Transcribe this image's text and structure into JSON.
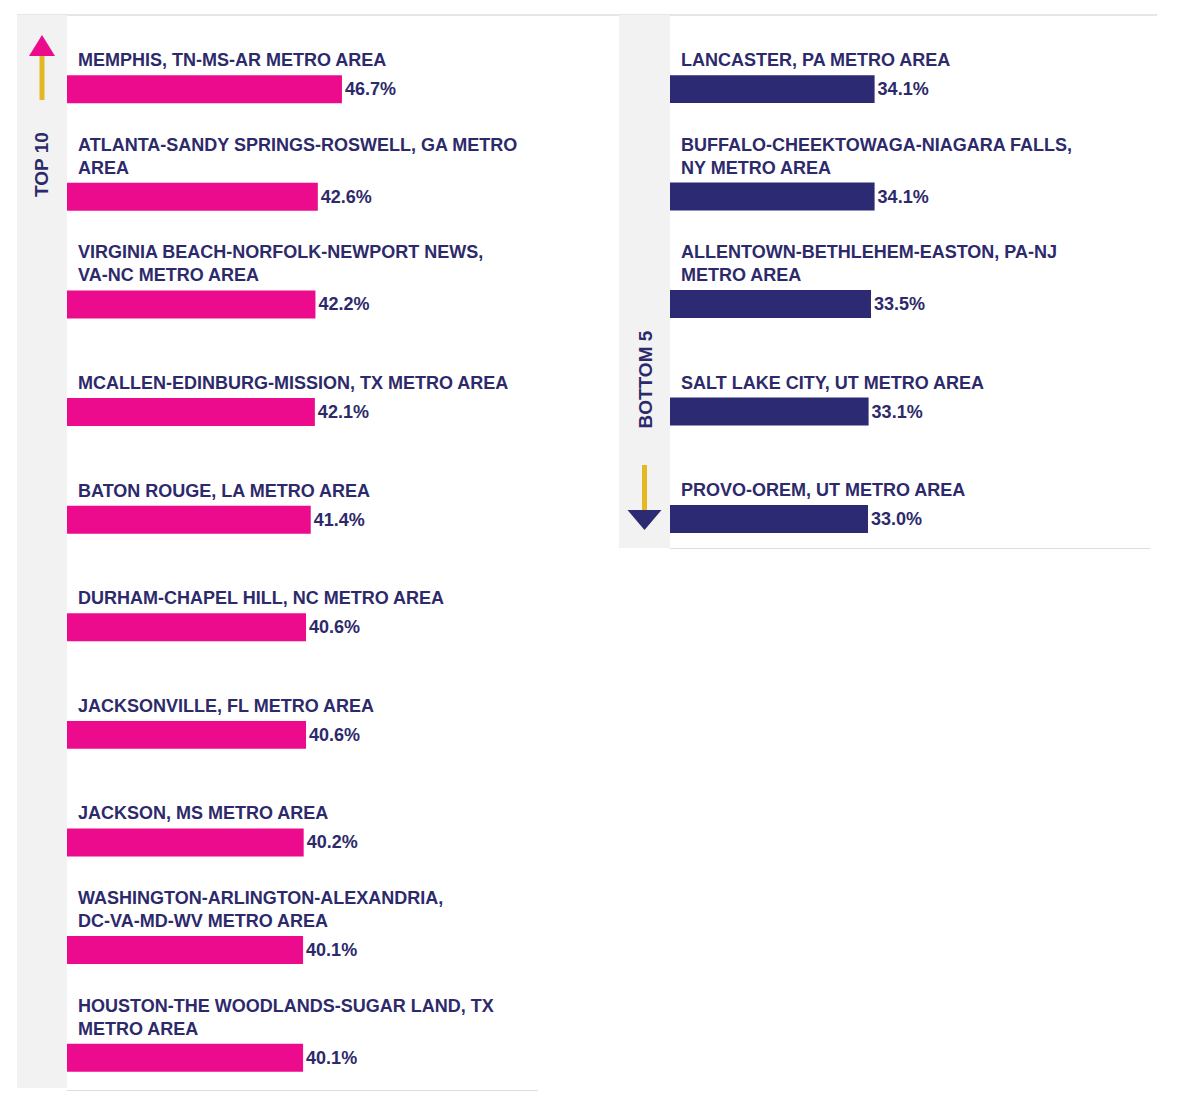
{
  "chart_data": [
    {
      "type": "bar",
      "title": "TOP 10",
      "orientation": "horizontal",
      "categories": [
        "MEMPHIS, TN-MS-AR METRO AREA",
        "ATLANTA-SANDY SPRINGS-ROSWELL, GA METRO AREA",
        "VIRGINIA BEACH-NORFOLK-NEWPORT NEWS, VA-NC METRO AREA",
        "MCALLEN-EDINBURG-MISSION, TX METRO AREA",
        "BATON ROUGE, LA METRO AREA",
        "DURHAM-CHAPEL HILL, NC METRO AREA",
        "JACKSONVILLE, FL METRO AREA",
        "JACKSON, MS METRO AREA",
        "WASHINGTON-ARLINGTON-ALEXANDRIA, DC-VA-MD-WV METRO AREA",
        "HOUSTON-THE WOODLANDS-SUGAR LAND, TX METRO AREA"
      ],
      "values": [
        46.7,
        42.6,
        42.2,
        42.1,
        41.4,
        40.6,
        40.6,
        40.2,
        40.1,
        40.1
      ],
      "value_labels": [
        "46.7%",
        "42.6%",
        "42.2%",
        "42.1%",
        "41.4%",
        "40.6%",
        "40.6%",
        "40.2%",
        "40.1%",
        "40.1%"
      ],
      "color": "#ec0b8c",
      "data_labels": true,
      "tick_labels": false,
      "xlim": [
        0,
        80
      ]
    },
    {
      "type": "bar",
      "title": "BOTTOM 5",
      "orientation": "horizontal",
      "categories": [
        "LANCASTER, PA METRO AREA",
        "BUFFALO-CHEEKTOWAGA-NIAGARA FALLS, NY METRO AREA",
        "ALLENTOWN-BETHLEHEM-EASTON, PA-NJ METRO AREA",
        "SALT LAKE CITY, UT METRO AREA",
        "PROVO-OREM, UT METRO AREA"
      ],
      "values": [
        34.1,
        34.1,
        33.5,
        33.1,
        33.0
      ],
      "value_labels": [
        "34.1%",
        "34.1%",
        "33.5%",
        "33.1%",
        "33.0%"
      ],
      "color": "#2b2a72",
      "data_labels": true,
      "tick_labels": false,
      "xlim": [
        0,
        80
      ]
    }
  ]
}
